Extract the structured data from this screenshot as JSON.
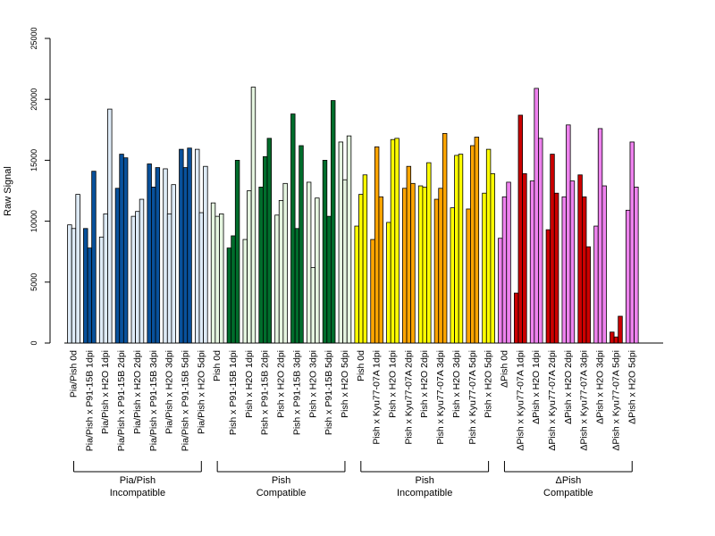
{
  "chart_data": {
    "type": "bar",
    "title": "",
    "xlabel": "",
    "ylabel": "Raw Signal",
    "ylim": [
      0,
      25000
    ],
    "yticks": [
      0,
      5000,
      10000,
      15000,
      20000,
      25000
    ],
    "grid": false,
    "legend": "none",
    "categories": [
      "Pia/Pish 0d",
      "Pia/Pish x P91-15B 1dpi",
      "Pia/Pish x H2O 1dpi",
      "Pia/Pish x P91-15B 2dpi",
      "Pia/Pish x H2O 2dpi",
      "Pia/Pish x P91-15B 3dpi",
      "Pia/Pish x H2O 3dpi",
      "Pia/Pish x P91-15B 5dpi",
      "Pia/Pish x H2O 5dpi",
      "Pish 0d",
      "Pish x P91-15B 1dpi",
      "Pish x H2O 1dpi",
      "Pish x P91-15B 2dpi",
      "Pish x H2O 2dpi",
      "Pish x P91-15B 3dpi",
      "Pish x H2O 3dpi",
      "Pish x P91-15B 5dpi",
      "Pish x H2O 5dpi",
      "Pish 0d",
      "Pish x Kyu77-07A 1dpi",
      "Pish x H2O 1dpi",
      "Pish x Kyu77-07A 2dpi",
      "Pish x H2O 2dpi",
      "Pish x Kyu77-07A 3dpi",
      "Pish x H2O 3dpi",
      "Pish x Kyu77-07A 5dpi",
      "Pish x H2O 5dpi",
      "ΔPish 0d",
      "ΔPish x Kyu77-07A 1dpi",
      "ΔPish x H2O 1dpi",
      "ΔPish x Kyu77-07A 2dpi",
      "ΔPish x H2O 2dpi",
      "ΔPish x Kyu77-07A 3dpi",
      "ΔPish x H2O 3dpi",
      "ΔPish x Kyu77-07A 5dpi",
      "ΔPish x H2O 5dpi"
    ],
    "replicates": 3,
    "values": [
      [
        9700,
        9400,
        12200
      ],
      [
        9400,
        7800,
        14100
      ],
      [
        8700,
        10600,
        19200
      ],
      [
        12700,
        15500,
        15200
      ],
      [
        10400,
        10800,
        11800
      ],
      [
        14700,
        12800,
        14400
      ],
      [
        14300,
        10600,
        13000
      ],
      [
        15900,
        14400,
        16000
      ],
      [
        15900,
        10700,
        14500
      ],
      [
        11500,
        10400,
        10600
      ],
      [
        7800,
        8800,
        15000
      ],
      [
        8500,
        12500,
        21000
      ],
      [
        12800,
        15300,
        16800
      ],
      [
        10500,
        11700,
        13100
      ],
      [
        18800,
        9400,
        16200
      ],
      [
        13200,
        6200,
        11900
      ],
      [
        15000,
        10400,
        19900
      ],
      [
        16500,
        13400,
        17000
      ],
      [
        9600,
        12200,
        13800
      ],
      [
        8500,
        16100,
        12000
      ],
      [
        9900,
        16700,
        16800
      ],
      [
        12700,
        14500,
        13100
      ],
      [
        12900,
        12800,
        14800
      ],
      [
        11800,
        12700,
        17200
      ],
      [
        11100,
        15400,
        15500
      ],
      [
        11000,
        16200,
        16900
      ],
      [
        12300,
        15900,
        13900
      ],
      [
        8600,
        12000,
        13200
      ],
      [
        4100,
        18700,
        13900
      ],
      [
        13300,
        20900,
        16800
      ],
      [
        9300,
        15500,
        12300
      ],
      [
        12000,
        17900,
        13300
      ],
      [
        13800,
        12000,
        7900
      ],
      [
        9600,
        17600,
        12900
      ],
      [
        900,
        500,
        2200
      ],
      [
        10900,
        16500,
        12800
      ]
    ],
    "groups": [
      {
        "line1": "Pia/Pish",
        "line2": "Incompatible",
        "light": "#deebf7",
        "dark": "#08519c",
        "start": 0,
        "end": 8
      },
      {
        "line1": "Pish",
        "line2": "Compatible",
        "light": "#e5f5e0",
        "dark": "#006d2c",
        "start": 9,
        "end": 17
      },
      {
        "line1": "Pish",
        "line2": "Incompatible",
        "light": "#ffff00",
        "dark": "#ffa500",
        "start": 18,
        "end": 26
      },
      {
        "line1": "ΔPish",
        "line2": "Compatible",
        "light": "#ee82ee",
        "dark": "#cc0000",
        "start": 27,
        "end": 35
      }
    ]
  }
}
